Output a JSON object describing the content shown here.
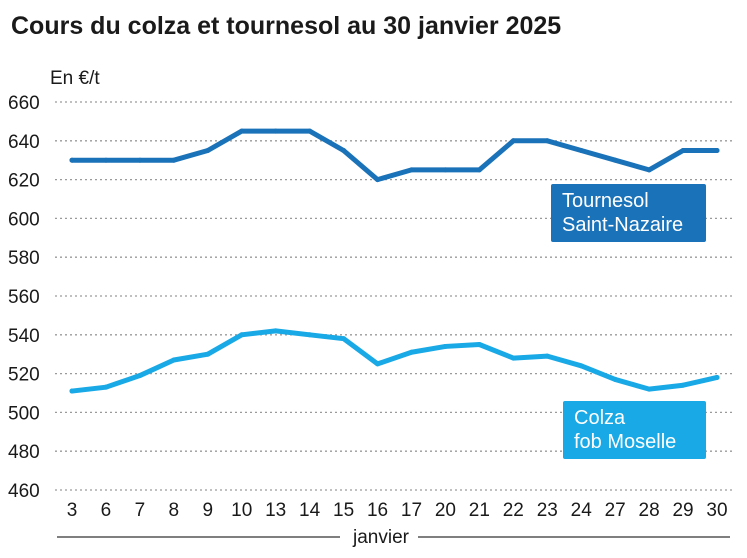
{
  "chart_data": {
    "type": "line",
    "title": "Cours du colza et tournesol au 30 janvier 2025",
    "ylabel": "En €/t",
    "xlabel": "janvier",
    "ylim": [
      460,
      660
    ],
    "yticks": [
      460,
      480,
      500,
      520,
      540,
      560,
      580,
      600,
      620,
      640,
      660
    ],
    "grid": true,
    "categories": [
      "3",
      "6",
      "7",
      "8",
      "9",
      "10",
      "13",
      "14",
      "15",
      "16",
      "17",
      "20",
      "21",
      "22",
      "23",
      "24",
      "27",
      "28",
      "29",
      "30"
    ],
    "series": [
      {
        "name": "Tournesol Saint-Nazaire",
        "label_lines": [
          "Tournesol",
          "Saint-Nazaire"
        ],
        "color": "#1a72b8",
        "values": [
          630,
          630,
          630,
          630,
          635,
          645,
          645,
          645,
          635,
          620,
          625,
          625,
          625,
          640,
          640,
          635,
          630,
          625,
          635,
          635
        ]
      },
      {
        "name": "Colza fob Moselle",
        "label_lines": [
          "Colza",
          "fob Moselle"
        ],
        "color": "#18a9e6",
        "values": [
          511,
          513,
          519,
          527,
          530,
          540,
          542,
          540,
          538,
          525,
          531,
          534,
          535,
          528,
          529,
          524,
          517,
          512,
          514,
          518
        ]
      }
    ]
  }
}
